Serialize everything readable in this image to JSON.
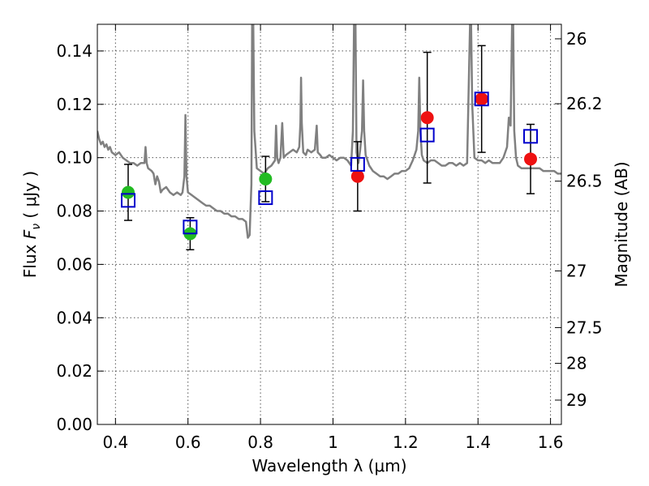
{
  "chart_data": {
    "type": "scatter",
    "xlabel": "Wavelength  λ (μm)",
    "ylabel_prefix": "Flux  ",
    "ylabel_symbol": "F",
    "ylabel_subscript": "ν",
    "ylabel_suffix": "  ( μJy )",
    "y2label": "Magnitude (AB)",
    "xlim": [
      0.35,
      1.63
    ],
    "ylim": [
      0.0,
      0.15
    ],
    "grid": true,
    "x_ticks": [
      {
        "value": 0.4,
        "label": "0.4"
      },
      {
        "value": 0.6,
        "label": "0.6"
      },
      {
        "value": 0.8,
        "label": "0.8"
      },
      {
        "value": 1.0,
        "label": "1"
      },
      {
        "value": 1.2,
        "label": "1.2"
      },
      {
        "value": 1.4,
        "label": "1.4"
      },
      {
        "value": 1.6,
        "label": "1.6"
      }
    ],
    "y_ticks": [
      {
        "value": 0.0,
        "label": "0.00"
      },
      {
        "value": 0.02,
        "label": "0.02"
      },
      {
        "value": 0.04,
        "label": "0.04"
      },
      {
        "value": 0.06,
        "label": "0.06"
      },
      {
        "value": 0.08,
        "label": "0.08"
      },
      {
        "value": 0.1,
        "label": "0.10"
      },
      {
        "value": 0.12,
        "label": "0.12"
      },
      {
        "value": 0.14,
        "label": "0.14"
      }
    ],
    "y2_ticks": [
      {
        "value": 26,
        "label": "26"
      },
      {
        "value": 26.2,
        "label": "26.2"
      },
      {
        "value": 26.5,
        "label": "26.5"
      },
      {
        "value": 27,
        "label": "27"
      },
      {
        "value": 27.5,
        "label": "27.5"
      },
      {
        "value": 28,
        "label": "28"
      },
      {
        "value": 29,
        "label": "29"
      }
    ],
    "colors": {
      "spectrum": "#808080",
      "model": "#0000cc",
      "green": "#22bb22",
      "red": "#ee1111",
      "errorbar": "#000000",
      "grid": "#555555"
    },
    "observed_points": [
      {
        "x": 0.435,
        "y": 0.087,
        "err": 0.0105,
        "color": "green"
      },
      {
        "x": 0.606,
        "y": 0.0715,
        "err": 0.006,
        "color": "green"
      },
      {
        "x": 0.814,
        "y": 0.092,
        "err": 0.0085,
        "color": "green"
      },
      {
        "x": 1.068,
        "y": 0.093,
        "err": 0.013,
        "color": "red"
      },
      {
        "x": 1.26,
        "y": 0.115,
        "err": 0.0245,
        "color": "red"
      },
      {
        "x": 1.41,
        "y": 0.122,
        "err": 0.02,
        "color": "red"
      },
      {
        "x": 1.545,
        "y": 0.0995,
        "err": 0.013,
        "color": "red"
      }
    ],
    "model_points": [
      {
        "x": 0.435,
        "y": 0.084
      },
      {
        "x": 0.606,
        "y": 0.074
      },
      {
        "x": 0.814,
        "y": 0.085
      },
      {
        "x": 1.068,
        "y": 0.0975
      },
      {
        "x": 1.26,
        "y": 0.1085
      },
      {
        "x": 1.41,
        "y": 0.122
      },
      {
        "x": 1.545,
        "y": 0.108
      }
    ],
    "spectrum": [
      [
        0.35,
        0.11
      ],
      [
        0.355,
        0.107
      ],
      [
        0.36,
        0.105
      ],
      [
        0.365,
        0.106
      ],
      [
        0.37,
        0.104
      ],
      [
        0.375,
        0.105
      ],
      [
        0.38,
        0.103
      ],
      [
        0.385,
        0.104
      ],
      [
        0.39,
        0.102
      ],
      [
        0.4,
        0.101
      ],
      [
        0.41,
        0.102
      ],
      [
        0.42,
        0.1
      ],
      [
        0.43,
        0.099
      ],
      [
        0.44,
        0.098
      ],
      [
        0.45,
        0.098
      ],
      [
        0.46,
        0.097
      ],
      [
        0.47,
        0.098
      ],
      [
        0.48,
        0.098
      ],
      [
        0.483,
        0.104
      ],
      [
        0.486,
        0.098
      ],
      [
        0.49,
        0.096
      ],
      [
        0.5,
        0.095
      ],
      [
        0.505,
        0.094
      ],
      [
        0.51,
        0.09
      ],
      [
        0.515,
        0.093
      ],
      [
        0.52,
        0.091
      ],
      [
        0.525,
        0.087
      ],
      [
        0.53,
        0.088
      ],
      [
        0.54,
        0.089
      ],
      [
        0.55,
        0.087
      ],
      [
        0.56,
        0.086
      ],
      [
        0.57,
        0.087
      ],
      [
        0.58,
        0.086
      ],
      [
        0.585,
        0.087
      ],
      [
        0.59,
        0.093
      ],
      [
        0.593,
        0.116
      ],
      [
        0.596,
        0.093
      ],
      [
        0.6,
        0.087
      ],
      [
        0.61,
        0.086
      ],
      [
        0.62,
        0.085
      ],
      [
        0.63,
        0.084
      ],
      [
        0.64,
        0.083
      ],
      [
        0.65,
        0.082
      ],
      [
        0.66,
        0.082
      ],
      [
        0.67,
        0.081
      ],
      [
        0.68,
        0.08
      ],
      [
        0.69,
        0.08
      ],
      [
        0.7,
        0.079
      ],
      [
        0.71,
        0.079
      ],
      [
        0.72,
        0.078
      ],
      [
        0.73,
        0.078
      ],
      [
        0.74,
        0.077
      ],
      [
        0.75,
        0.077
      ],
      [
        0.76,
        0.076
      ],
      [
        0.765,
        0.07
      ],
      [
        0.77,
        0.071
      ],
      [
        0.775,
        0.09
      ],
      [
        0.777,
        0.15
      ],
      [
        0.78,
        0.15
      ],
      [
        0.783,
        0.11
      ],
      [
        0.79,
        0.096
      ],
      [
        0.8,
        0.095
      ],
      [
        0.81,
        0.094
      ],
      [
        0.82,
        0.096
      ],
      [
        0.83,
        0.097
      ],
      [
        0.84,
        0.099
      ],
      [
        0.843,
        0.112
      ],
      [
        0.846,
        0.1
      ],
      [
        0.85,
        0.098
      ],
      [
        0.855,
        0.1
      ],
      [
        0.86,
        0.113
      ],
      [
        0.864,
        0.1
      ],
      [
        0.87,
        0.101
      ],
      [
        0.88,
        0.102
      ],
      [
        0.89,
        0.103
      ],
      [
        0.9,
        0.102
      ],
      [
        0.907,
        0.104
      ],
      [
        0.91,
        0.113
      ],
      [
        0.912,
        0.13
      ],
      [
        0.914,
        0.113
      ],
      [
        0.918,
        0.102
      ],
      [
        0.925,
        0.101
      ],
      [
        0.93,
        0.103
      ],
      [
        0.94,
        0.102
      ],
      [
        0.95,
        0.103
      ],
      [
        0.955,
        0.112
      ],
      [
        0.958,
        0.102
      ],
      [
        0.965,
        0.101
      ],
      [
        0.97,
        0.1
      ],
      [
        0.98,
        0.1
      ],
      [
        0.99,
        0.101
      ],
      [
        1.0,
        0.1
      ],
      [
        1.01,
        0.099
      ],
      [
        1.02,
        0.1
      ],
      [
        1.03,
        0.1
      ],
      [
        1.04,
        0.099
      ],
      [
        1.05,
        0.097
      ],
      [
        1.055,
        0.11
      ],
      [
        1.058,
        0.15
      ],
      [
        1.062,
        0.15
      ],
      [
        1.065,
        0.102
      ],
      [
        1.07,
        0.098
      ],
      [
        1.075,
        0.103
      ],
      [
        1.08,
        0.11
      ],
      [
        1.083,
        0.129
      ],
      [
        1.086,
        0.11
      ],
      [
        1.09,
        0.101
      ],
      [
        1.1,
        0.097
      ],
      [
        1.11,
        0.095
      ],
      [
        1.12,
        0.094
      ],
      [
        1.13,
        0.093
      ],
      [
        1.14,
        0.093
      ],
      [
        1.15,
        0.092
      ],
      [
        1.16,
        0.093
      ],
      [
        1.17,
        0.094
      ],
      [
        1.18,
        0.094
      ],
      [
        1.19,
        0.095
      ],
      [
        1.2,
        0.095
      ],
      [
        1.21,
        0.096
      ],
      [
        1.22,
        0.099
      ],
      [
        1.23,
        0.103
      ],
      [
        1.235,
        0.11
      ],
      [
        1.238,
        0.13
      ],
      [
        1.241,
        0.11
      ],
      [
        1.245,
        0.101
      ],
      [
        1.25,
        0.099
      ],
      [
        1.26,
        0.098
      ],
      [
        1.27,
        0.099
      ],
      [
        1.28,
        0.099
      ],
      [
        1.29,
        0.098
      ],
      [
        1.3,
        0.097
      ],
      [
        1.31,
        0.097
      ],
      [
        1.32,
        0.098
      ],
      [
        1.33,
        0.098
      ],
      [
        1.34,
        0.097
      ],
      [
        1.35,
        0.098
      ],
      [
        1.36,
        0.097
      ],
      [
        1.37,
        0.098
      ],
      [
        1.375,
        0.13
      ],
      [
        1.378,
        0.15
      ],
      [
        1.381,
        0.15
      ],
      [
        1.384,
        0.12
      ],
      [
        1.39,
        0.1
      ],
      [
        1.4,
        0.099
      ],
      [
        1.41,
        0.099
      ],
      [
        1.42,
        0.098
      ],
      [
        1.43,
        0.099
      ],
      [
        1.44,
        0.098
      ],
      [
        1.45,
        0.098
      ],
      [
        1.46,
        0.098
      ],
      [
        1.47,
        0.1
      ],
      [
        1.48,
        0.104
      ],
      [
        1.485,
        0.115
      ],
      [
        1.49,
        0.112
      ],
      [
        1.494,
        0.15
      ],
      [
        1.497,
        0.15
      ],
      [
        1.5,
        0.11
      ],
      [
        1.505,
        0.1
      ],
      [
        1.51,
        0.097
      ],
      [
        1.52,
        0.096
      ],
      [
        1.53,
        0.096
      ],
      [
        1.54,
        0.096
      ],
      [
        1.55,
        0.096
      ],
      [
        1.56,
        0.096
      ],
      [
        1.57,
        0.096
      ],
      [
        1.58,
        0.095
      ],
      [
        1.59,
        0.095
      ],
      [
        1.6,
        0.095
      ],
      [
        1.61,
        0.095
      ],
      [
        1.62,
        0.094
      ],
      [
        1.63,
        0.094
      ]
    ]
  }
}
